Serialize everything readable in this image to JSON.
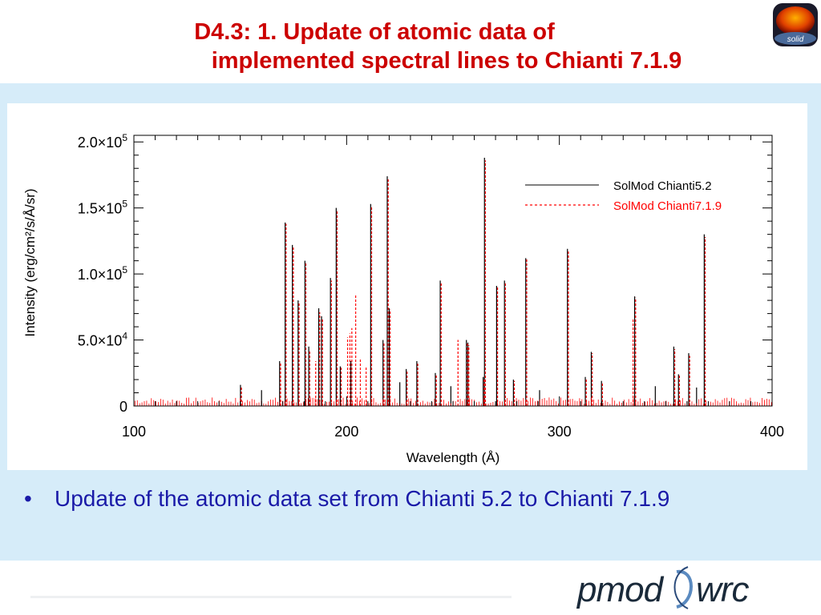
{
  "slide": {
    "title_line1": "D4.3: 1. Update of atomic data of",
    "title_line2": "implemented spectral lines to Chianti 7.1.9",
    "bullet": "Update of the atomic data set from Chianti 5.2 to Chianti 7.1.9",
    "bullet_marker": "•",
    "logo_solid_text": "solid",
    "logo_pmod_left": "pmod",
    "logo_pmod_right": "wrc"
  },
  "colors": {
    "title": "#cc0000",
    "bullet": "#1a1aa8",
    "panel": "#d6ecf9",
    "series_a": "#000000",
    "series_b": "#ff0000"
  },
  "chart_data": {
    "type": "line",
    "xlabel": "Wavelength (Å)",
    "ylabel": "Intensity (erg/cm²/s/Å/sr)",
    "xlim": [
      100,
      400
    ],
    "ylim": [
      0,
      205000
    ],
    "x_ticks": [
      100,
      200,
      300,
      400
    ],
    "y_ticks": [
      {
        "value": 0,
        "base": "0",
        "exp": ""
      },
      {
        "value": 50000,
        "base": "5.0×10",
        "exp": "4"
      },
      {
        "value": 100000,
        "base": "1.0×10",
        "exp": "5"
      },
      {
        "value": 150000,
        "base": "1.5×10",
        "exp": "5"
      },
      {
        "value": 200000,
        "base": "2.0×10",
        "exp": "5"
      }
    ],
    "legend_position": "top-right",
    "series": [
      {
        "name": "SolMod Chianti5.2",
        "style": "solid",
        "lines": [
          [
            171.1,
            139000
          ],
          [
            174.5,
            122000
          ],
          [
            177.2,
            80000
          ],
          [
            180.4,
            110000
          ],
          [
            182.2,
            45000
          ],
          [
            186.9,
            74000
          ],
          [
            188.2,
            68000
          ],
          [
            192.4,
            97000
          ],
          [
            195.1,
            150000
          ],
          [
            202.0,
            34000
          ],
          [
            211.3,
            153000
          ],
          [
            217.1,
            50000
          ],
          [
            219.1,
            174000
          ],
          [
            220.0,
            74000
          ],
          [
            244.0,
            95000
          ],
          [
            256.3,
            50000
          ],
          [
            257.0,
            48000
          ],
          [
            264.8,
            188000
          ],
          [
            270.5,
            91000
          ],
          [
            274.2,
            95000
          ],
          [
            284.2,
            112000
          ],
          [
            303.8,
            119000
          ],
          [
            315.0,
            41000
          ],
          [
            335.4,
            83000
          ],
          [
            353.8,
            45000
          ],
          [
            360.8,
            40000
          ],
          [
            368.1,
            130000
          ],
          [
            168.5,
            34000
          ],
          [
            160.0,
            12000
          ],
          [
            150.1,
            16000
          ],
          [
            228.0,
            28000
          ],
          [
            233.0,
            34000
          ],
          [
            241.7,
            25000
          ],
          [
            249.0,
            15000
          ],
          [
            264.2,
            22000
          ],
          [
            278.4,
            20000
          ],
          [
            290.7,
            12000
          ],
          [
            312.2,
            22000
          ],
          [
            319.8,
            19000
          ],
          [
            345.1,
            15000
          ],
          [
            356.0,
            24000
          ],
          [
            364.5,
            14000
          ],
          [
            197.0,
            30000
          ],
          [
            225.0,
            18000
          ]
        ]
      },
      {
        "name": "SolMod Chianti7.1.9",
        "style": "dotted",
        "lines": [
          [
            171.1,
            138000
          ],
          [
            174.5,
            120000
          ],
          [
            177.2,
            79000
          ],
          [
            180.4,
            108000
          ],
          [
            182.2,
            42000
          ],
          [
            185.0,
            34000
          ],
          [
            186.9,
            71000
          ],
          [
            188.2,
            66000
          ],
          [
            192.4,
            95000
          ],
          [
            195.1,
            148000
          ],
          [
            200.0,
            52000
          ],
          [
            201.1,
            55000
          ],
          [
            202.0,
            59000
          ],
          [
            203.8,
            84000
          ],
          [
            208.7,
            30000
          ],
          [
            211.3,
            151000
          ],
          [
            217.1,
            48000
          ],
          [
            219.1,
            172000
          ],
          [
            220.0,
            73000
          ],
          [
            244.0,
            93000
          ],
          [
            251.9,
            50000
          ],
          [
            256.3,
            48000
          ],
          [
            257.0,
            46000
          ],
          [
            264.8,
            186000
          ],
          [
            270.5,
            90000
          ],
          [
            274.2,
            94000
          ],
          [
            284.2,
            111000
          ],
          [
            303.8,
            117000
          ],
          [
            315.0,
            40000
          ],
          [
            335.4,
            82000
          ],
          [
            334.2,
            66000
          ],
          [
            353.8,
            43000
          ],
          [
            360.8,
            38000
          ],
          [
            368.1,
            128000
          ],
          [
            168.5,
            33000
          ],
          [
            150.1,
            15000
          ],
          [
            228.0,
            26000
          ],
          [
            233.0,
            32000
          ],
          [
            241.7,
            24000
          ],
          [
            264.2,
            21000
          ],
          [
            278.4,
            19000
          ],
          [
            312.2,
            21000
          ],
          [
            319.8,
            18000
          ],
          [
            356.0,
            23000
          ],
          [
            197.0,
            29000
          ],
          [
            206.0,
            36000
          ]
        ]
      }
    ]
  }
}
